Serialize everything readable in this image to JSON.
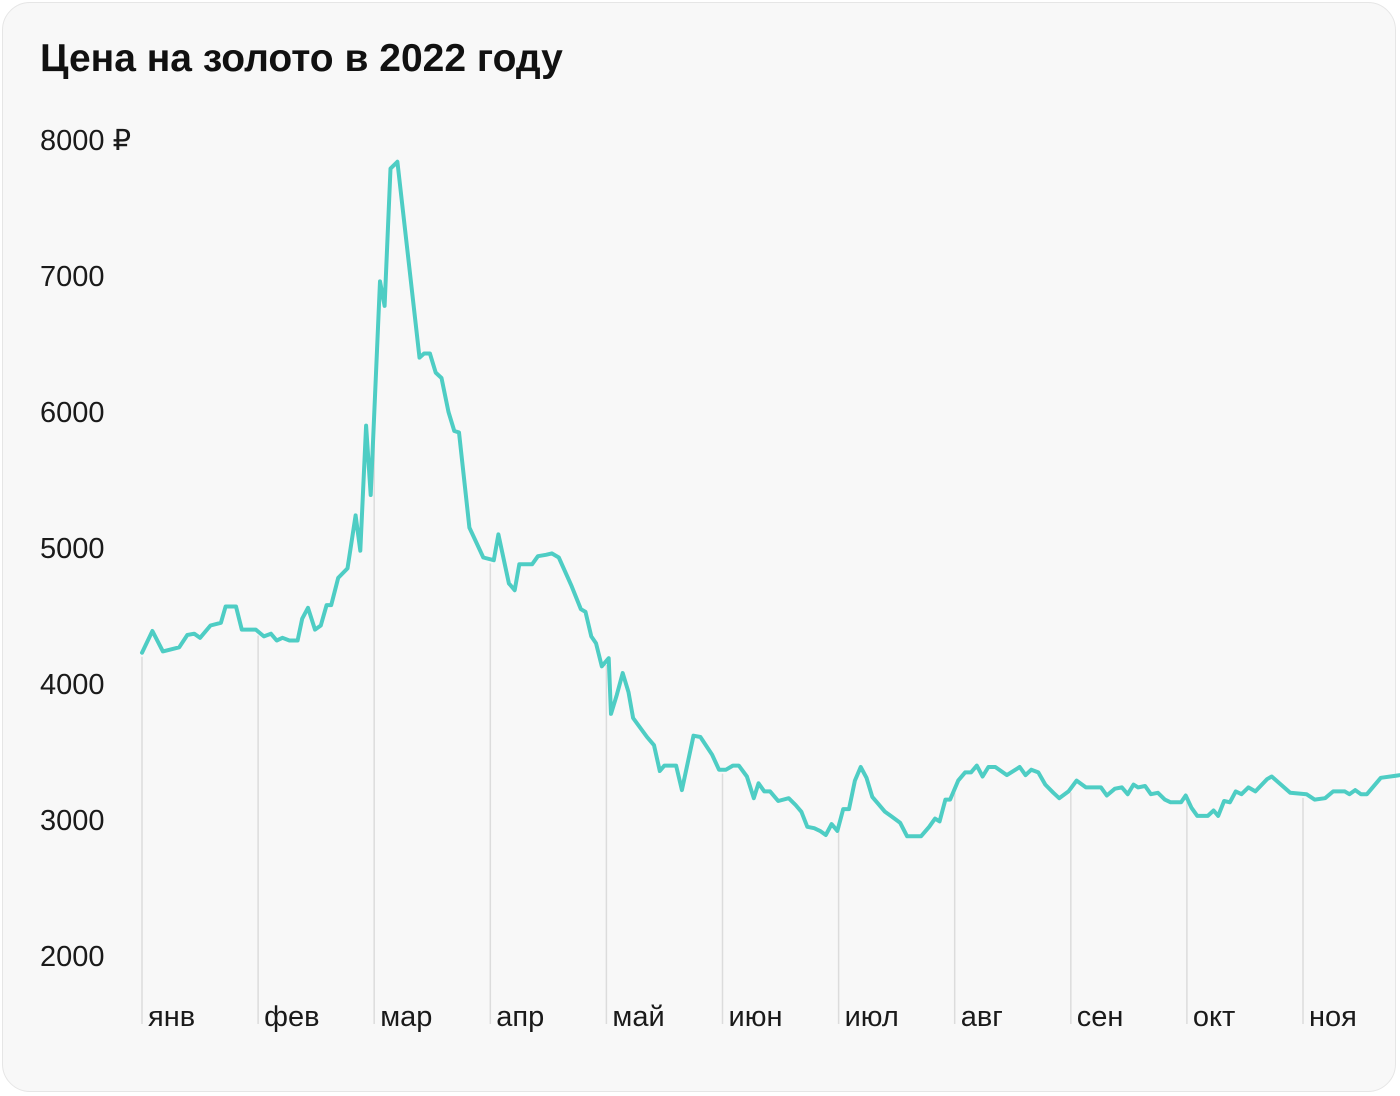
{
  "colors": {
    "line": "#4ecdc4",
    "background": "#f8f8f8",
    "gridline": "#dcdcdc"
  },
  "chart_data": {
    "type": "line",
    "title": "Цена на золото в 2022 году",
    "xlabel": "",
    "ylabel": "",
    "ylim": [
      2000,
      8000
    ],
    "y_ticks": [
      {
        "value": 8000,
        "label": "8000 ₽"
      },
      {
        "value": 7000,
        "label": "7000"
      },
      {
        "value": 6000,
        "label": "6000"
      },
      {
        "value": 5000,
        "label": "5000"
      },
      {
        "value": 4000,
        "label": "4000"
      },
      {
        "value": 3000,
        "label": "3000"
      },
      {
        "value": 2000,
        "label": "2000"
      }
    ],
    "x_ticks": [
      "янв",
      "фев",
      "мар",
      "апр",
      "май",
      "июн",
      "июл",
      "авг",
      "сен",
      "окт",
      "ноя"
    ],
    "x_unit": "month index (0 = start of янв)",
    "grid": "vertical at month starts",
    "legend": "none",
    "series": [
      {
        "points": [
          [
            0.0,
            4230
          ],
          [
            0.09,
            4390
          ],
          [
            0.18,
            4240
          ],
          [
            0.32,
            4270
          ],
          [
            0.39,
            4360
          ],
          [
            0.45,
            4370
          ],
          [
            0.5,
            4340
          ],
          [
            0.59,
            4430
          ],
          [
            0.68,
            4450
          ],
          [
            0.72,
            4570
          ],
          [
            0.81,
            4570
          ],
          [
            0.86,
            4400
          ],
          [
            0.98,
            4400
          ],
          [
            1.05,
            4350
          ],
          [
            1.11,
            4370
          ],
          [
            1.16,
            4320
          ],
          [
            1.21,
            4340
          ],
          [
            1.27,
            4320
          ],
          [
            1.34,
            4320
          ],
          [
            1.38,
            4480
          ],
          [
            1.43,
            4560
          ],
          [
            1.49,
            4400
          ],
          [
            1.54,
            4430
          ],
          [
            1.59,
            4580
          ],
          [
            1.63,
            4580
          ],
          [
            1.69,
            4780
          ],
          [
            1.77,
            4850
          ],
          [
            1.84,
            5240
          ],
          [
            1.88,
            4980
          ],
          [
            1.93,
            5900
          ],
          [
            1.97,
            5390
          ],
          [
            2.05,
            6960
          ],
          [
            2.09,
            6780
          ],
          [
            2.14,
            7790
          ],
          [
            2.2,
            7840
          ],
          [
            2.39,
            6400
          ],
          [
            2.43,
            6430
          ],
          [
            2.48,
            6430
          ],
          [
            2.53,
            6290
          ],
          [
            2.58,
            6250
          ],
          [
            2.64,
            6000
          ],
          [
            2.69,
            5860
          ],
          [
            2.73,
            5850
          ],
          [
            2.82,
            5150
          ],
          [
            2.88,
            5040
          ],
          [
            2.94,
            4930
          ],
          [
            3.03,
            4910
          ],
          [
            3.07,
            5100
          ],
          [
            3.16,
            4740
          ],
          [
            3.21,
            4690
          ],
          [
            3.25,
            4880
          ],
          [
            3.36,
            4880
          ],
          [
            3.41,
            4940
          ],
          [
            3.48,
            4950
          ],
          [
            3.53,
            4960
          ],
          [
            3.59,
            4930
          ],
          [
            3.7,
            4720
          ],
          [
            3.78,
            4550
          ],
          [
            3.82,
            4530
          ],
          [
            3.87,
            4350
          ],
          [
            3.91,
            4300
          ],
          [
            3.96,
            4130
          ],
          [
            4.02,
            4190
          ],
          [
            4.04,
            3780
          ],
          [
            4.09,
            3920
          ],
          [
            4.14,
            4080
          ],
          [
            4.19,
            3940
          ],
          [
            4.23,
            3750
          ],
          [
            4.35,
            3610
          ],
          [
            4.41,
            3550
          ],
          [
            4.46,
            3360
          ],
          [
            4.5,
            3400
          ],
          [
            4.55,
            3400
          ],
          [
            4.6,
            3400
          ],
          [
            4.65,
            3220
          ],
          [
            4.75,
            3620
          ],
          [
            4.81,
            3610
          ],
          [
            4.91,
            3480
          ],
          [
            4.97,
            3370
          ],
          [
            5.03,
            3370
          ],
          [
            5.09,
            3400
          ],
          [
            5.14,
            3400
          ],
          [
            5.21,
            3320
          ],
          [
            5.27,
            3160
          ],
          [
            5.31,
            3270
          ],
          [
            5.36,
            3210
          ],
          [
            5.41,
            3210
          ],
          [
            5.48,
            3140
          ],
          [
            5.57,
            3160
          ],
          [
            5.63,
            3110
          ],
          [
            5.68,
            3060
          ],
          [
            5.73,
            2950
          ],
          [
            5.79,
            2940
          ],
          [
            5.84,
            2920
          ],
          [
            5.89,
            2890
          ],
          [
            5.94,
            2970
          ],
          [
            5.99,
            2920
          ],
          [
            6.04,
            3080
          ],
          [
            6.09,
            3080
          ],
          [
            6.14,
            3290
          ],
          [
            6.19,
            3390
          ],
          [
            6.24,
            3310
          ],
          [
            6.29,
            3170
          ],
          [
            6.34,
            3120
          ],
          [
            6.4,
            3060
          ],
          [
            6.45,
            3030
          ],
          [
            6.53,
            2980
          ],
          [
            6.59,
            2880
          ],
          [
            6.66,
            2880
          ],
          [
            6.71,
            2880
          ],
          [
            6.78,
            2950
          ],
          [
            6.83,
            3010
          ],
          [
            6.87,
            2990
          ],
          [
            6.92,
            3150
          ],
          [
            6.96,
            3150
          ],
          [
            7.03,
            3290
          ],
          [
            7.09,
            3350
          ],
          [
            7.14,
            3350
          ],
          [
            7.19,
            3400
          ],
          [
            7.24,
            3320
          ],
          [
            7.29,
            3390
          ],
          [
            7.35,
            3390
          ],
          [
            7.45,
            3330
          ],
          [
            7.56,
            3390
          ],
          [
            7.61,
            3330
          ],
          [
            7.66,
            3370
          ],
          [
            7.72,
            3350
          ],
          [
            7.78,
            3260
          ],
          [
            7.85,
            3200
          ],
          [
            7.9,
            3160
          ],
          [
            7.98,
            3210
          ],
          [
            8.05,
            3290
          ],
          [
            8.13,
            3240
          ],
          [
            8.2,
            3240
          ],
          [
            8.26,
            3240
          ],
          [
            8.31,
            3180
          ],
          [
            8.38,
            3230
          ],
          [
            8.44,
            3240
          ],
          [
            8.49,
            3190
          ],
          [
            8.54,
            3260
          ],
          [
            8.58,
            3240
          ],
          [
            8.64,
            3250
          ],
          [
            8.69,
            3190
          ],
          [
            8.75,
            3200
          ],
          [
            8.81,
            3150
          ],
          [
            8.86,
            3130
          ],
          [
            8.95,
            3130
          ],
          [
            8.99,
            3180
          ],
          [
            9.04,
            3090
          ],
          [
            9.09,
            3030
          ],
          [
            9.18,
            3030
          ],
          [
            9.23,
            3070
          ],
          [
            9.27,
            3030
          ],
          [
            9.32,
            3140
          ],
          [
            9.37,
            3130
          ],
          [
            9.42,
            3210
          ],
          [
            9.47,
            3190
          ],
          [
            9.53,
            3240
          ],
          [
            9.59,
            3210
          ],
          [
            9.69,
            3300
          ],
          [
            9.73,
            3320
          ],
          [
            9.89,
            3200
          ],
          [
            10.03,
            3190
          ],
          [
            10.1,
            3150
          ],
          [
            10.19,
            3160
          ],
          [
            10.26,
            3210
          ],
          [
            10.36,
            3210
          ],
          [
            10.4,
            3190
          ],
          [
            10.45,
            3220
          ],
          [
            10.5,
            3190
          ],
          [
            10.55,
            3190
          ],
          [
            10.67,
            3310
          ],
          [
            10.84,
            3330
          ]
        ]
      }
    ]
  }
}
